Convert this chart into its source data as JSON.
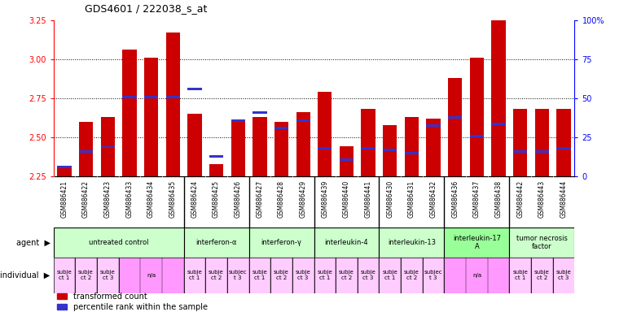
{
  "title": "GDS4601 / 222038_s_at",
  "samples": [
    "GSM886421",
    "GSM886422",
    "GSM886423",
    "GSM886433",
    "GSM886434",
    "GSM886435",
    "GSM886424",
    "GSM886425",
    "GSM886426",
    "GSM886427",
    "GSM886428",
    "GSM886429",
    "GSM886439",
    "GSM886440",
    "GSM886441",
    "GSM886430",
    "GSM886431",
    "GSM886432",
    "GSM886436",
    "GSM886437",
    "GSM886438",
    "GSM886442",
    "GSM886443",
    "GSM886444"
  ],
  "transformed_count": [
    2.31,
    2.6,
    2.63,
    3.06,
    3.01,
    3.17,
    2.65,
    2.33,
    2.6,
    2.63,
    2.6,
    2.66,
    2.79,
    2.44,
    2.68,
    2.58,
    2.63,
    2.62,
    2.88,
    3.01,
    3.25,
    2.68,
    2.68,
    2.68
  ],
  "percentile_rank": [
    5,
    15,
    18,
    50,
    50,
    50,
    55,
    12,
    35,
    40,
    30,
    35,
    17,
    10,
    17,
    16,
    14,
    32,
    37,
    25,
    33,
    15,
    15,
    17
  ],
  "ylim_left": [
    2.25,
    3.25
  ],
  "ylim_right": [
    0,
    100
  ],
  "yticks_left": [
    2.25,
    2.5,
    2.75,
    3.0,
    3.25
  ],
  "yticks_right": [
    0,
    25,
    50,
    75,
    100
  ],
  "bar_color_red": "#cc0000",
  "bar_color_blue": "#3333cc",
  "grid_color": "#000000",
  "separator_color": "#000000",
  "xticklabel_bg": "#d0d0d0",
  "agent_groups": [
    {
      "label": "untreated control",
      "start": 0,
      "end": 6,
      "color": "#ccffcc"
    },
    {
      "label": "interferon-α",
      "start": 6,
      "end": 9,
      "color": "#ccffcc"
    },
    {
      "label": "interferon-γ",
      "start": 9,
      "end": 12,
      "color": "#ccffcc"
    },
    {
      "label": "interleukin-4",
      "start": 12,
      "end": 15,
      "color": "#ccffcc"
    },
    {
      "label": "interleukin-13",
      "start": 15,
      "end": 18,
      "color": "#ccffcc"
    },
    {
      "label": "interleukin-17\nA",
      "start": 18,
      "end": 21,
      "color": "#99ff99"
    },
    {
      "label": "tumor necrosis\nfactor",
      "start": 21,
      "end": 24,
      "color": "#ccffcc"
    }
  ],
  "individual_groups": [
    {
      "label": "subje\nct 1",
      "start": 0,
      "end": 1,
      "color": "#ffccff"
    },
    {
      "label": "subje\nct 2",
      "start": 1,
      "end": 2,
      "color": "#ffccff"
    },
    {
      "label": "subje\nct 3",
      "start": 2,
      "end": 3,
      "color": "#ffccff"
    },
    {
      "label": "n/a",
      "start": 3,
      "end": 6,
      "color": "#ff99ff"
    },
    {
      "label": "subje\nct 1",
      "start": 6,
      "end": 7,
      "color": "#ffccff"
    },
    {
      "label": "subje\nct 2",
      "start": 7,
      "end": 8,
      "color": "#ffccff"
    },
    {
      "label": "subjec\nt 3",
      "start": 8,
      "end": 9,
      "color": "#ffccff"
    },
    {
      "label": "subje\nct 1",
      "start": 9,
      "end": 10,
      "color": "#ffccff"
    },
    {
      "label": "subje\nct 2",
      "start": 10,
      "end": 11,
      "color": "#ffccff"
    },
    {
      "label": "subje\nct 3",
      "start": 11,
      "end": 12,
      "color": "#ffccff"
    },
    {
      "label": "subje\nct 1",
      "start": 12,
      "end": 13,
      "color": "#ffccff"
    },
    {
      "label": "subje\nct 2",
      "start": 13,
      "end": 14,
      "color": "#ffccff"
    },
    {
      "label": "subje\nct 3",
      "start": 14,
      "end": 15,
      "color": "#ffccff"
    },
    {
      "label": "subje\nct 1",
      "start": 15,
      "end": 16,
      "color": "#ffccff"
    },
    {
      "label": "subje\nct 2",
      "start": 16,
      "end": 17,
      "color": "#ffccff"
    },
    {
      "label": "subjec\nt 3",
      "start": 17,
      "end": 18,
      "color": "#ffccff"
    },
    {
      "label": "n/a",
      "start": 18,
      "end": 21,
      "color": "#ff99ff"
    },
    {
      "label": "subje\nct 1",
      "start": 21,
      "end": 22,
      "color": "#ffccff"
    },
    {
      "label": "subje\nct 2",
      "start": 22,
      "end": 23,
      "color": "#ffccff"
    },
    {
      "label": "subje\nct 3",
      "start": 23,
      "end": 24,
      "color": "#ffccff"
    }
  ],
  "group_separators": [
    6,
    9,
    12,
    15,
    18,
    21
  ],
  "legend_red_label": "transformed count",
  "legend_blue_label": "percentile rank within the sample",
  "agent_label": "agent",
  "individual_label": "individual"
}
